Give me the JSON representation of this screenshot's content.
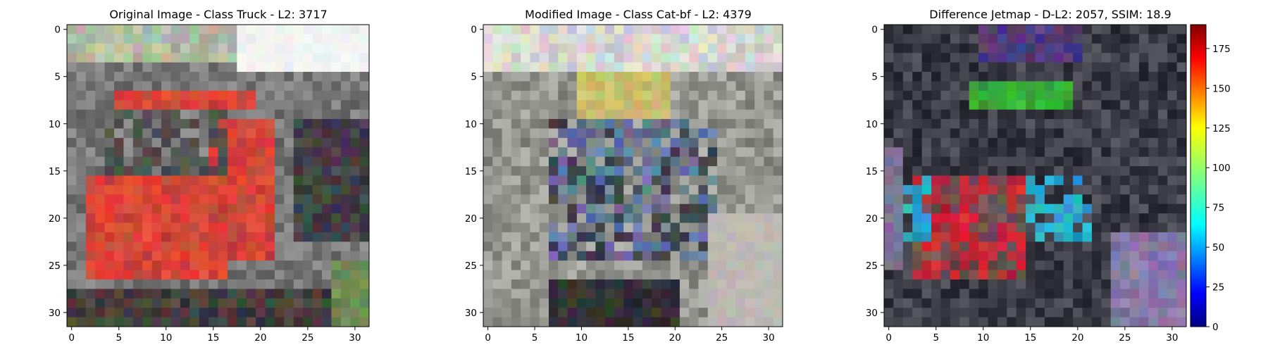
{
  "figure": {
    "panels": [
      {
        "id": "original",
        "title": "Original Image - Class Truck - L2: 3717",
        "title_color": "#ff0000",
        "xticks": [
          "0",
          "5",
          "10",
          "15",
          "20",
          "25",
          "30"
        ],
        "yticks": [
          "0",
          "5",
          "10",
          "15",
          "20",
          "25",
          "30"
        ],
        "grid_size": 32,
        "content": "pixelated photo of a red truck"
      },
      {
        "id": "modified",
        "title": "Modified Image - Class Cat-bf - L2: 4379",
        "title_color": "#000000",
        "xticks": [
          "0",
          "5",
          "10",
          "15",
          "20",
          "25",
          "30"
        ],
        "yticks": [
          "0",
          "5",
          "10",
          "15",
          "20",
          "25",
          "30"
        ],
        "grid_size": 32,
        "content": "pixelated photo of a grey/blue vehicle-like scene"
      },
      {
        "id": "difference",
        "title": "Difference Jetmap - D-L2: 2057, SSIM: 18.9",
        "title_color": "#000000",
        "xticks": [
          "0",
          "5",
          "10",
          "15",
          "20",
          "25",
          "30"
        ],
        "yticks": [
          "0",
          "5",
          "10",
          "15",
          "20",
          "25",
          "30"
        ],
        "grid_size": 32,
        "content": "jet-colormap difference overlay"
      }
    ],
    "colorbar": {
      "ticks": [
        "0",
        "25",
        "50",
        "75",
        "100",
        "125",
        "150",
        "175"
      ],
      "min": 0,
      "max": 190,
      "colormap": "jet"
    }
  }
}
